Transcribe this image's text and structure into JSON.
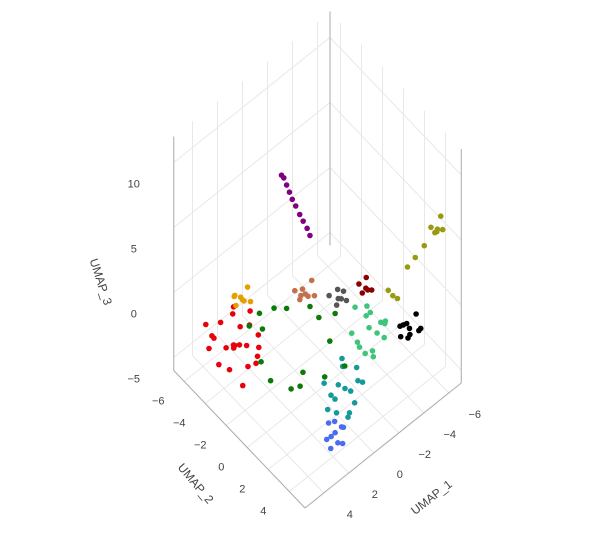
{
  "chart_data": {
    "type": "scatter3d",
    "xlabel": "UMAP_1",
    "ylabel": "UMAP_2",
    "zlabel": "UMAP_3",
    "xlim": [
      -7,
      5.5
    ],
    "ylim": [
      -7,
      5.5
    ],
    "zlim": [
      -6,
      12
    ],
    "xticks": [
      {
        "value": -6,
        "label": "−6"
      },
      {
        "value": -4,
        "label": "−4"
      },
      {
        "value": -2,
        "label": "−2"
      },
      0,
      2,
      4
    ],
    "yticks": [
      {
        "value": -6,
        "label": "−6"
      },
      {
        "value": -4,
        "label": "−4"
      },
      {
        "value": -2,
        "label": "−2"
      },
      0,
      2,
      4
    ],
    "zticks": [
      {
        "value": -5,
        "label": "−5"
      },
      0,
      5,
      10
    ],
    "grid": true,
    "series": [
      {
        "color": "#e8000b",
        "x": [
          3.9,
          4.8,
          3.0,
          4.5,
          3.3,
          5.0,
          2.8,
          4.1,
          3.6,
          4.9,
          3.1,
          4.3,
          2.6,
          3.8,
          4.6,
          3.4,
          5.2,
          2.9,
          4.0,
          3.7,
          4.4,
          3.2,
          2.5,
          4.7
        ],
        "y": [
          -3.1,
          -4.2,
          -2.0,
          -2.5,
          -4.0,
          -3.3,
          -3.0,
          -1.6,
          -4.8,
          -2.0,
          -3.6,
          -4.6,
          -2.4,
          -2.7,
          -1.5,
          -1.4,
          -4.0,
          -4.4,
          -3.8,
          -2.2,
          -3.0,
          -1.9,
          -3.3,
          -4.9
        ],
        "z": [
          -2,
          -1.5,
          -2.6,
          -1,
          -0.8,
          -2.8,
          -1.2,
          -2.2,
          -1.9,
          -0.5,
          -3,
          -2.4,
          -1.6,
          -0.3,
          -3.2,
          -1.1,
          -2,
          -0.9,
          -2.7,
          -1.4,
          -3.4,
          -2.9,
          -0.6,
          -1.3
        ]
      },
      {
        "color": "#4a6cf0",
        "x": [
          2.0,
          2.5,
          1.5,
          2.2,
          1.7,
          2.6,
          1.4,
          2.1,
          1.9,
          2.4
        ],
        "y": [
          4.2,
          4.0,
          4.4,
          4.7,
          3.8,
          4.5,
          4.1,
          3.7,
          4.8,
          4.3
        ],
        "z": [
          -4,
          -4.3,
          -3.8,
          -4.2,
          -3.7,
          -4.5,
          -4.1,
          -3.6,
          -4.4,
          -3.9
        ]
      },
      {
        "color": "#16999a",
        "x": [
          0.2,
          0.9,
          -0.5,
          1.3,
          -0.2,
          0.6,
          -0.9,
          1.0,
          0.1,
          -0.4,
          1.5,
          0.4,
          -0.7,
          0.8,
          0.0,
          1.2
        ],
        "y": [
          3.0,
          2.5,
          3.4,
          3.5,
          2.3,
          3.9,
          2.8,
          3.0,
          3.8,
          2.0,
          2.9,
          2.6,
          3.6,
          4.0,
          3.3,
          2.2
        ],
        "z": [
          -3,
          -3.4,
          -2.6,
          -3.6,
          -2.2,
          -3.8,
          -2.4,
          -3.2,
          -3.5,
          -2,
          -3.7,
          -2.9,
          -2.7,
          -3.9,
          -3.1,
          -2.5
        ]
      },
      {
        "color": "#3fc47c",
        "x": [
          -2.4,
          -1.6,
          -3.2,
          -2.0,
          -2.9,
          -1.3,
          -3.5,
          -2.2,
          -1.9,
          -2.7,
          -3.0,
          -1.5,
          -2.5,
          -3.4,
          -1.8,
          -2.6
        ],
        "y": [
          2.2,
          1.5,
          2.8,
          3.0,
          1.4,
          2.4,
          2.0,
          1.1,
          3.2,
          2.6,
          1.6,
          2.9,
          1.8,
          2.5,
          2.0,
          3.4
        ],
        "z": [
          -1,
          -1.4,
          -0.6,
          -1.8,
          -0.4,
          -1.1,
          -1.6,
          -0.2,
          -2,
          -1.3,
          -0.8,
          -1.7,
          -0.5,
          -1.2,
          -2.2,
          -0.9
        ]
      },
      {
        "color": "#000000",
        "x": [
          -4.2,
          -4.7,
          -3.7,
          -4.4,
          -3.9,
          -4.9,
          -4.0,
          -3.5,
          -4.6,
          -4.3
        ],
        "y": [
          3.9,
          4.2,
          3.6,
          3.4,
          4.3,
          3.7,
          4.0,
          3.9,
          4.5,
          3.2
        ],
        "z": [
          -1,
          -1.3,
          -0.7,
          -1.2,
          -0.9,
          -0.6,
          -1.5,
          -1.1,
          -0.8,
          -1.4
        ]
      },
      {
        "color": "#0b7a0b",
        "x": [
          2.4,
          0.5,
          -1.2,
          -0.6,
          2.7,
          3.8,
          -0.2,
          1.5,
          1.8,
          -0.9,
          3.3,
          0.9,
          2.1,
          -1.7,
          0.0,
          3.0
        ],
        "y": [
          -3.5,
          -3.4,
          -2.0,
          0.6,
          1.7,
          0.2,
          2.5,
          -3.6,
          0.9,
          -0.8,
          -1.3,
          1.9,
          -2.6,
          -0.2,
          -2.8,
          1.2
        ],
        "z": [
          -2,
          -2,
          -2,
          -2,
          -2,
          -2,
          -2,
          -1.8,
          -2.3,
          -1.6,
          -2.2,
          -2.5,
          -1.7,
          -1.4,
          -1.9,
          -2.4
        ]
      },
      {
        "color": "#e69f00",
        "x": [
          2.7,
          3.1,
          2.3,
          2.9,
          2.5,
          3.3,
          2.2,
          2.8
        ],
        "y": [
          -3.8,
          -4.1,
          -3.5,
          -3.4,
          -4.2,
          -3.7,
          -3.9,
          -4.4
        ],
        "z": [
          0,
          0.3,
          -0.2,
          0.4,
          -0.3,
          0.1,
          0.5,
          -0.1
        ]
      },
      {
        "color": "#c4704a",
        "x": [
          -0.4,
          0.1,
          -0.8,
          -0.2,
          -0.6,
          0.2,
          -1.0,
          -0.3
        ],
        "y": [
          -1.5,
          -1.9,
          -1.1,
          -1.0,
          -2.0,
          -1.3,
          -1.6,
          -1.8
        ],
        "z": [
          0,
          0.3,
          -0.1,
          0.4,
          -0.2,
          0.2,
          0.5,
          -0.3
        ]
      },
      {
        "color": "#555555",
        "x": [
          -1.7,
          -1.3,
          -2.1,
          -1.6,
          -1.9,
          -1.4,
          -2.2
        ],
        "y": [
          0.1,
          -0.3,
          0.4,
          0.5,
          -0.2,
          0.3,
          0.0
        ],
        "z": [
          0,
          0.2,
          -0.2,
          0.4,
          0.3,
          -0.1,
          0.1
        ]
      },
      {
        "color": "#8b0000",
        "x": [
          -3.4,
          -3.1,
          -3.7,
          -3.3,
          -3.6,
          -3.2
        ],
        "y": [
          0.7,
          0.4,
          0.9,
          1.0,
          0.5,
          0.6
        ],
        "z": [
          0,
          0.3,
          -0.2,
          0.2,
          0.5,
          -0.3
        ]
      },
      {
        "color": "#9a9a10",
        "x": [
          -4.3,
          -4.1,
          -4.5,
          -4.8,
          -5.0,
          -5.3,
          -5.8,
          -5.5,
          -6.1,
          -5.9,
          -5.6,
          -6.2
        ],
        "y": [
          2.2,
          2.0,
          2.4,
          3.0,
          3.5,
          4.0,
          4.6,
          4.4,
          4.8,
          4.3,
          4.9,
          4.5
        ],
        "z": [
          0,
          0.4,
          -0.2,
          2.5,
          3.5,
          4.6,
          5.8,
          6.2,
          5.9,
          5.4,
          6.4,
          6.6
        ]
      },
      {
        "color": "#800080",
        "x": [
          1.5,
          1.4,
          1.3,
          1.2,
          1.1,
          0.95,
          0.8,
          0.65,
          0.5,
          0.4
        ],
        "y": [
          -1.5,
          -1.4,
          -1.25,
          -1.1,
          -0.95,
          -0.8,
          -0.6,
          -0.45,
          -0.25,
          -0.1
        ],
        "z": [
          10.6,
          10.4,
          9.9,
          9.4,
          8.9,
          8.4,
          7.8,
          7.3,
          6.8,
          6.3
        ]
      }
    ]
  }
}
